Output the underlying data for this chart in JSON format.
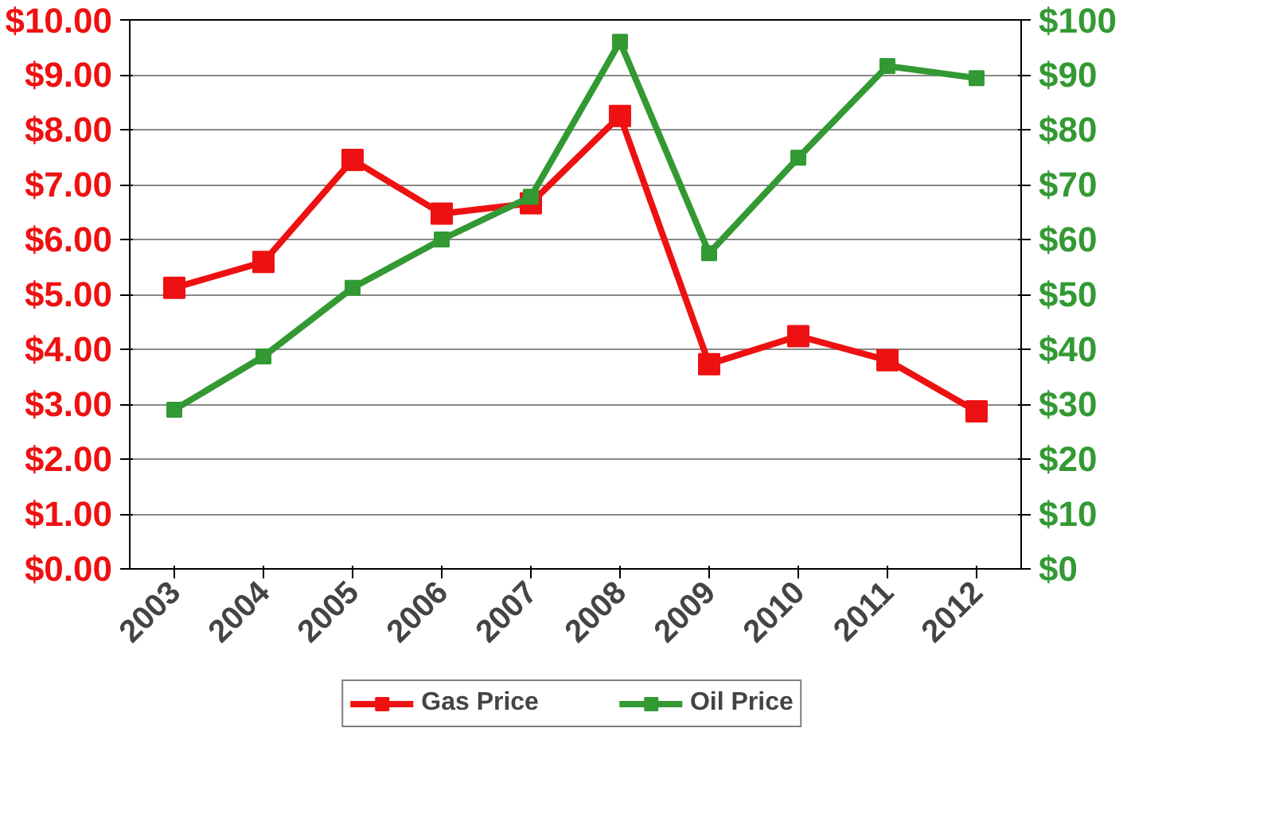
{
  "chart_data": {
    "type": "line",
    "categories": [
      "2003",
      "2004",
      "2005",
      "2006",
      "2007",
      "2008",
      "2009",
      "2010",
      "2011",
      "2012"
    ],
    "series": [
      {
        "name": "Gas Price",
        "color": "#ee1111",
        "values": [
          5.12,
          5.59,
          7.45,
          6.47,
          6.66,
          8.25,
          3.73,
          4.24,
          3.8,
          2.87
        ]
      },
      {
        "name": "Oil Price",
        "color": "#339933",
        "axis": "y2",
        "values": [
          29,
          38.7,
          51.2,
          60,
          67.8,
          96,
          57.5,
          74.9,
          91.6,
          89.4
        ]
      }
    ],
    "ylim": [
      0,
      10
    ],
    "yticks": [
      {
        "value": 0,
        "label": "$0.00"
      },
      {
        "value": 1,
        "label": "$1.00"
      },
      {
        "value": 2,
        "label": "$2.00"
      },
      {
        "value": 3,
        "label": "$3.00"
      },
      {
        "value": 4,
        "label": "$4.00"
      },
      {
        "value": 5,
        "label": "$5.00"
      },
      {
        "value": 6,
        "label": "$6.00"
      },
      {
        "value": 7,
        "label": "$7.00"
      },
      {
        "value": 8,
        "label": "$8.00"
      },
      {
        "value": 9,
        "label": "$9.00"
      },
      {
        "value": 10,
        "label": "$10.00"
      }
    ],
    "y2lim": [
      0,
      100
    ],
    "y2ticks": [
      {
        "value": 0,
        "label": "$0"
      },
      {
        "value": 10,
        "label": "$10"
      },
      {
        "value": 20,
        "label": "$20"
      },
      {
        "value": 30,
        "label": "$30"
      },
      {
        "value": 40,
        "label": "$40"
      },
      {
        "value": 50,
        "label": "$50"
      },
      {
        "value": 60,
        "label": "$60"
      },
      {
        "value": 70,
        "label": "$70"
      },
      {
        "value": 80,
        "label": "$80"
      },
      {
        "value": 90,
        "label": "$90"
      },
      {
        "value": 100,
        "label": "$100"
      }
    ],
    "grid": "y",
    "legend": "bottom",
    "marker": "square",
    "line_style": "solid"
  }
}
